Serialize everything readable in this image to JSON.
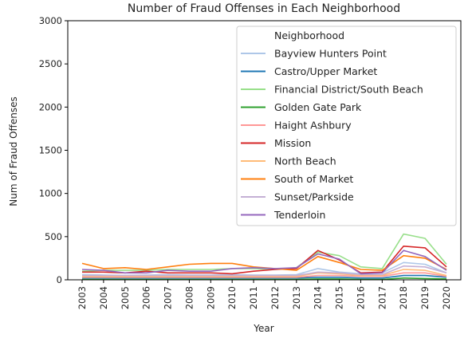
{
  "chart_data": {
    "type": "line",
    "title": "Number of Fraud Offenses in Each Neighborhood",
    "xlabel": "Year",
    "ylabel": "Num of Fraud Offenses",
    "ylim": [
      0,
      3000
    ],
    "yticks": [
      "0",
      "500",
      "1000",
      "1500",
      "2000",
      "2500",
      "3000"
    ],
    "grid": false,
    "legend": {
      "title": "Neighborhood",
      "placement": "top-right"
    },
    "x": [
      "2003",
      "2004",
      "2005",
      "2006",
      "2007",
      "2008",
      "2009",
      "2010",
      "2011",
      "2012",
      "2013",
      "2014",
      "2015",
      "2016",
      "2017",
      "2018",
      "2019",
      "2020"
    ],
    "series": [
      {
        "name": "Bayview Hunters Point",
        "color": "#aec7e8",
        "values": [
          60,
          55,
          50,
          55,
          60,
          55,
          55,
          60,
          55,
          55,
          60,
          130,
          90,
          70,
          80,
          200,
          180,
          80
        ]
      },
      {
        "name": "Castro/Upper Market",
        "color": "#1f77b4",
        "values": [
          20,
          20,
          20,
          20,
          20,
          20,
          20,
          20,
          20,
          20,
          20,
          30,
          30,
          20,
          20,
          50,
          50,
          30
        ]
      },
      {
        "name": "Financial District/South Beach",
        "color": "#98df8a",
        "values": [
          100,
          110,
          110,
          110,
          120,
          120,
          120,
          130,
          130,
          120,
          140,
          320,
          280,
          150,
          130,
          530,
          480,
          180
        ]
      },
      {
        "name": "Golden Gate Park",
        "color": "#2ca02c",
        "values": [
          5,
          5,
          5,
          5,
          5,
          5,
          5,
          5,
          5,
          5,
          5,
          10,
          10,
          5,
          5,
          20,
          15,
          10
        ]
      },
      {
        "name": "Haight Ashbury",
        "color": "#ff9896",
        "values": [
          30,
          30,
          30,
          30,
          30,
          30,
          30,
          30,
          30,
          30,
          30,
          50,
          50,
          40,
          40,
          80,
          80,
          40
        ]
      },
      {
        "name": "Mission",
        "color": "#d62728",
        "values": [
          90,
          90,
          80,
          100,
          80,
          80,
          80,
          70,
          100,
          120,
          130,
          340,
          230,
          80,
          90,
          390,
          370,
          150
        ]
      },
      {
        "name": "North Beach",
        "color": "#ffbb78",
        "values": [
          40,
          40,
          40,
          40,
          40,
          40,
          40,
          40,
          40,
          40,
          40,
          80,
          70,
          50,
          50,
          120,
          110,
          50
        ]
      },
      {
        "name": "South of Market",
        "color": "#ff7f0e",
        "values": [
          190,
          130,
          140,
          120,
          150,
          180,
          190,
          190,
          150,
          130,
          110,
          270,
          200,
          120,
          110,
          280,
          250,
          120
        ]
      },
      {
        "name": "Sunset/Parkside",
        "color": "#c5b0d5",
        "values": [
          50,
          50,
          50,
          50,
          50,
          50,
          50,
          50,
          50,
          50,
          50,
          90,
          80,
          60,
          60,
          160,
          150,
          80
        ]
      },
      {
        "name": "Tenderloin",
        "color": "#9467bd",
        "values": [
          120,
          110,
          80,
          80,
          110,
          100,
          100,
          130,
          140,
          130,
          140,
          300,
          240,
          70,
          80,
          340,
          270,
          110
        ]
      }
    ]
  }
}
